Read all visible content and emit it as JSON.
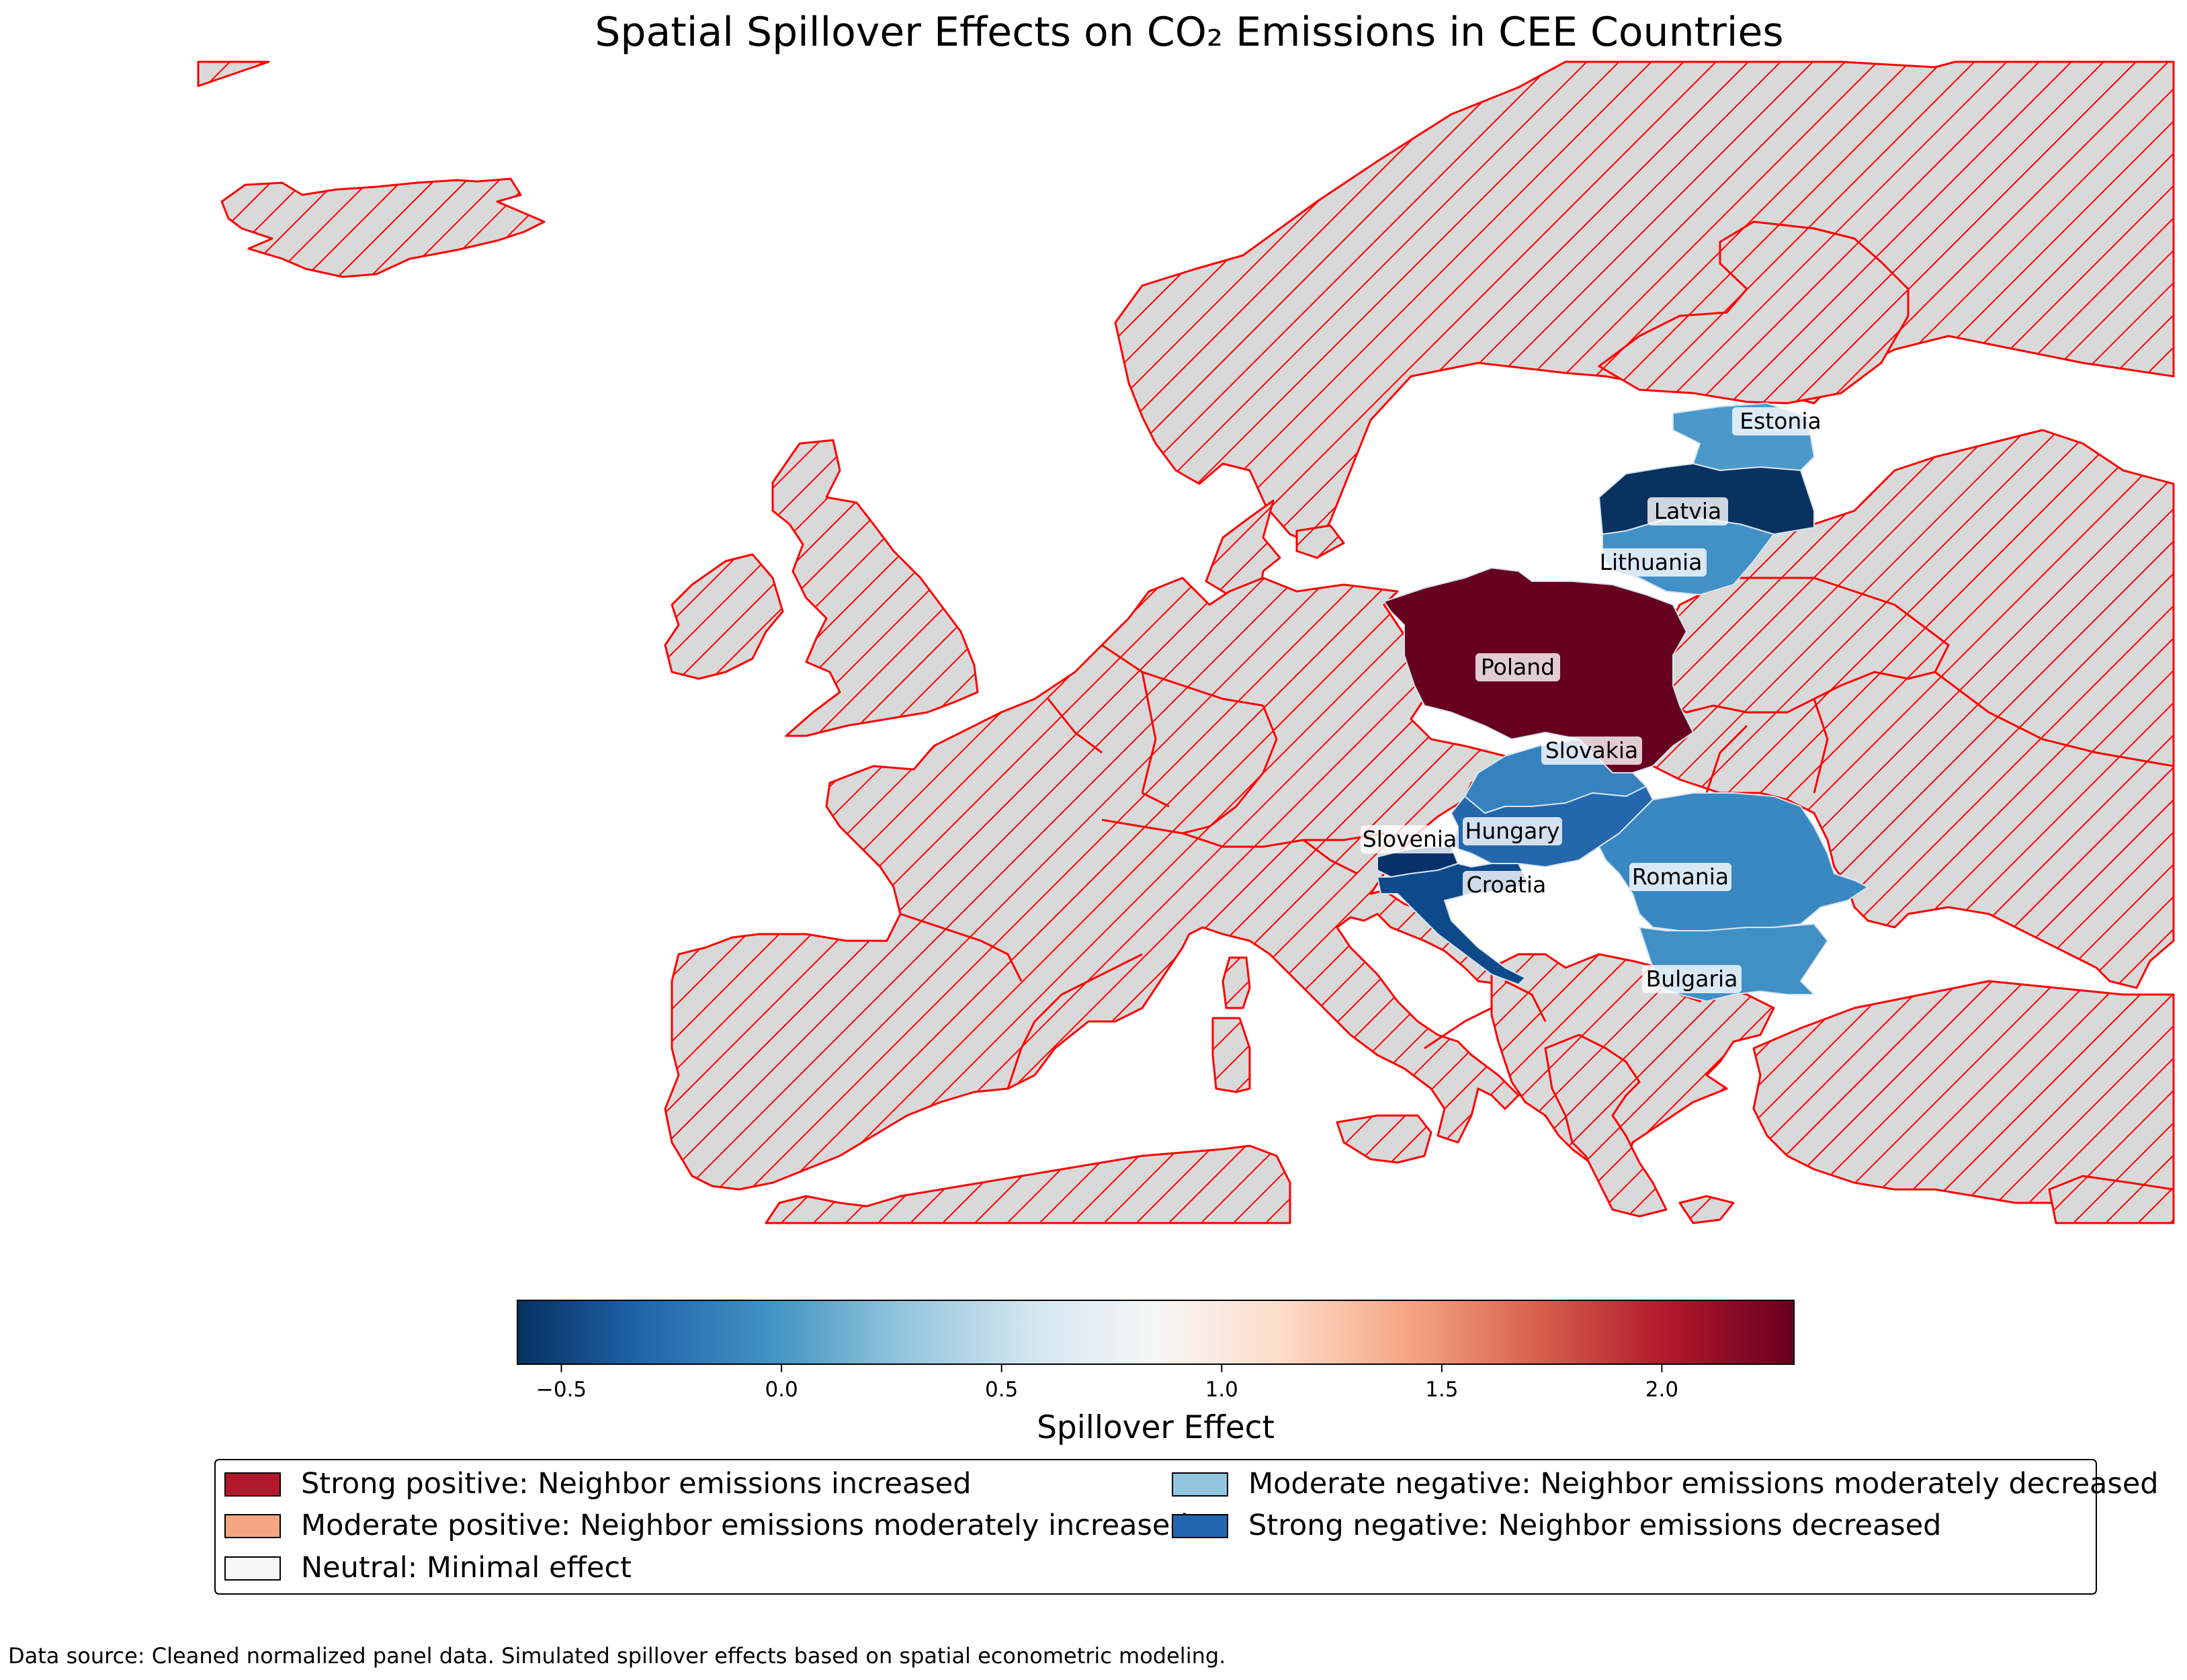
{
  "title": "Spatial Spillover Effects on CO₂ Emissions in CEE Countries",
  "map": {
    "background_style": {
      "fill": "#d9d9d9",
      "hatch_color": "#ff0000",
      "edge_color": "#ff0000"
    },
    "countries": [
      {
        "name": "Estonia",
        "label": "Estonia",
        "color": "#4b98ca"
      },
      {
        "name": "Latvia",
        "label": "Latvia",
        "color": "#0a3260"
      },
      {
        "name": "Lithuania",
        "label": "Lithuania",
        "color": "#4190c6"
      },
      {
        "name": "Poland",
        "label": "Poland",
        "color": "#67001f"
      },
      {
        "name": "Slovakia",
        "label": "Slovakia",
        "color": "#3682be"
      },
      {
        "name": "Hungary",
        "label": "Hungary",
        "color": "#2567ad"
      },
      {
        "name": "Slovenia",
        "label": "Slovenia",
        "color": "#08306b"
      },
      {
        "name": "Croatia",
        "label": "Croatia",
        "color": "#0e4a8a"
      },
      {
        "name": "Romania",
        "label": "Romania",
        "color": "#3a88c2"
      },
      {
        "name": "Bulgaria",
        "label": "Bulgaria",
        "color": "#4090c5"
      }
    ]
  },
  "colorbar": {
    "label": "Spillover Effect",
    "range": [
      -0.6,
      2.3
    ],
    "ticks": [
      {
        "value": -0.5,
        "label": "−0.5"
      },
      {
        "value": 0.0,
        "label": "0.0"
      },
      {
        "value": 0.5,
        "label": "0.5"
      },
      {
        "value": 1.0,
        "label": "1.0"
      },
      {
        "value": 1.5,
        "label": "1.5"
      },
      {
        "value": 2.0,
        "label": "2.0"
      }
    ],
    "colormap": [
      "#053061",
      "#2166ac",
      "#4393c3",
      "#92c5de",
      "#d1e5f0",
      "#f7f7f7",
      "#fddbc7",
      "#f4a582",
      "#d6604d",
      "#b2182b",
      "#67001f"
    ]
  },
  "legend": {
    "items": [
      {
        "label": "Strong positive: Neighbor emissions increased",
        "color": "#b2182b"
      },
      {
        "label": "Moderate positive: Neighbor emissions moderately increased",
        "color": "#f4a582"
      },
      {
        "label": "Neutral: Minimal effect",
        "color": "#f7f7f7"
      },
      {
        "label": "Moderate negative: Neighbor emissions moderately decreased",
        "color": "#92c5de"
      },
      {
        "label": "Strong negative: Neighbor emissions decreased",
        "color": "#2166ac"
      }
    ]
  },
  "source_note": "Data source: Cleaned normalized panel data. Simulated spillover effects based on spatial econometric modeling."
}
